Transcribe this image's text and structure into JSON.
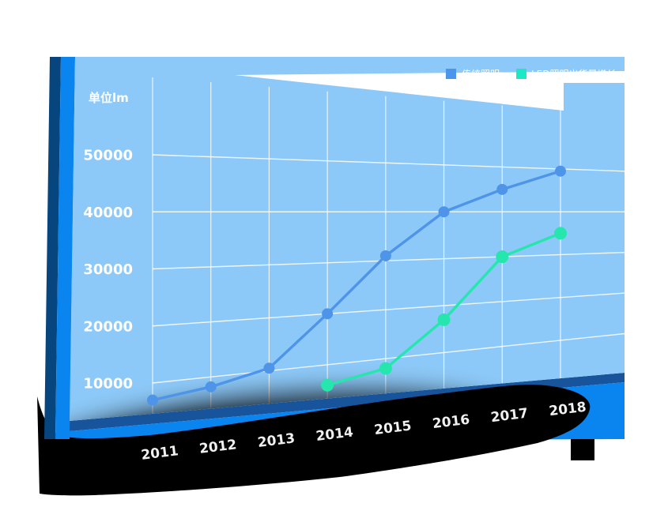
{
  "unit_label": "单位lm",
  "legend": {
    "items": [
      {
        "label": "传统照明",
        "color": "#4A96EC",
        "text_color": "#ffffff"
      },
      {
        "label": "LED照明出货量增长",
        "color": "#1BE9C6",
        "text_color": "#ffffff"
      }
    ]
  },
  "colors": {
    "panel": "#8DC9F8",
    "bright_blue": "#0A85F0",
    "left_navy": "#06457E",
    "band_navy": "#17549B",
    "ground_shadow": "#000000",
    "gridline": "#ffffff",
    "tick_text": "#ffffff",
    "year_text": "#F0F0F0"
  },
  "chart_data": {
    "type": "line",
    "title": "",
    "xlabel": "",
    "ylabel": "单位lm",
    "categories": [
      "2011",
      "2012",
      "2013",
      "2014",
      "2015",
      "2016",
      "2017",
      "2018"
    ],
    "y_ticks": [
      "10000",
      "20000",
      "30000",
      "40000",
      "50000"
    ],
    "ylim": [
      10000,
      50000
    ],
    "grid": true,
    "legend_position": "top-right",
    "series": [
      {
        "name": "传统照明",
        "color": "#4E94E8",
        "point_radius": 7,
        "values": [
          7000,
          8200,
          10500,
          20000,
          31000,
          40000,
          45000,
          49500
        ]
      },
      {
        "name": "LED照明出货量增长",
        "color": "#25E6AD",
        "point_radius": 8,
        "values": [
          null,
          null,
          null,
          6000,
          8000,
          17000,
          30000,
          35000
        ]
      }
    ]
  }
}
